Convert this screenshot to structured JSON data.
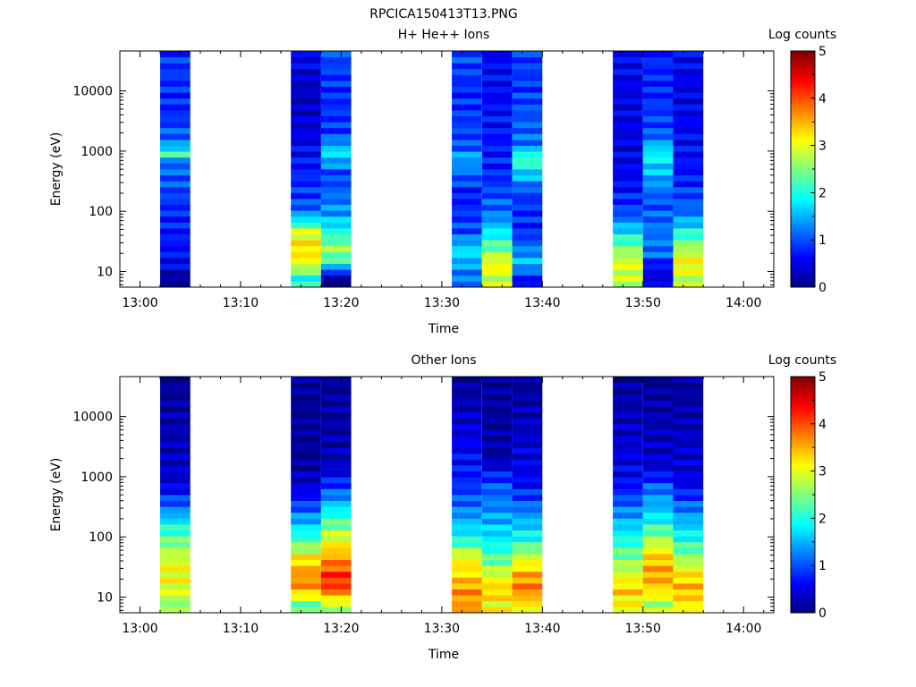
{
  "figure_title": "RPCICA150413T13.PNG",
  "colormap": [
    "#00007f",
    "#0000ff",
    "#007fff",
    "#00ffff",
    "#7fff7f",
    "#ffff00",
    "#ff7f00",
    "#ff0000",
    "#7f0000"
  ],
  "chart_data": [
    {
      "type": "heatmap",
      "title": "H+ He++ Ions",
      "xlabel": "Time",
      "ylabel": "Energy (eV)",
      "yscale": "log",
      "x_ticks": [
        "13:00",
        "13:10",
        "13:20",
        "13:30",
        "13:40",
        "13:50",
        "14:00"
      ],
      "y_ticks": [
        "10",
        "100",
        "1000",
        "10000"
      ],
      "colorbar": {
        "label": "Log counts",
        "min": 0,
        "max": 5,
        "ticks": [
          "0",
          "1",
          "2",
          "3",
          "4",
          "5"
        ]
      },
      "bins": [
        {
          "start": "13:02",
          "end": "13:05",
          "profile": [
            {
              "e": 8,
              "v": 0.1
            },
            {
              "e": 13,
              "v": 0.6
            },
            {
              "e": 30,
              "v": 0.7
            },
            {
              "e": 100,
              "v": 0.8
            },
            {
              "e": 700,
              "v": 1.2
            },
            {
              "e": 950,
              "v": 2.6
            },
            {
              "e": 1200,
              "v": 1.3
            },
            {
              "e": 4000,
              "v": 0.8
            },
            {
              "e": 40000,
              "v": 0.9
            }
          ]
        },
        {
          "start": "13:15",
          "end": "13:18",
          "profile": [
            {
              "e": 8,
              "v": 2.0
            },
            {
              "e": 13,
              "v": 3.0
            },
            {
              "e": 22,
              "v": 3.3
            },
            {
              "e": 45,
              "v": 3.0
            },
            {
              "e": 70,
              "v": 1.8
            },
            {
              "e": 120,
              "v": 1.0
            },
            {
              "e": 600,
              "v": 0.7
            },
            {
              "e": 3000,
              "v": 0.4
            },
            {
              "e": 10000,
              "v": 0.3
            },
            {
              "e": 40000,
              "v": 0.6
            }
          ]
        },
        {
          "start": "13:18",
          "end": "13:21",
          "profile": [
            {
              "e": 8,
              "v": 0.1
            },
            {
              "e": 13,
              "v": 1.9
            },
            {
              "e": 22,
              "v": 2.7
            },
            {
              "e": 45,
              "v": 2.0
            },
            {
              "e": 90,
              "v": 1.4
            },
            {
              "e": 400,
              "v": 0.9
            },
            {
              "e": 950,
              "v": 1.8
            },
            {
              "e": 2000,
              "v": 0.9
            },
            {
              "e": 10000,
              "v": 0.8
            },
            {
              "e": 40000,
              "v": 1.0
            }
          ]
        },
        {
          "start": "13:31",
          "end": "13:34",
          "profile": [
            {
              "e": 8,
              "v": 1.2
            },
            {
              "e": 13,
              "v": 1.4
            },
            {
              "e": 22,
              "v": 1.8
            },
            {
              "e": 45,
              "v": 1.0
            },
            {
              "e": 200,
              "v": 0.7
            },
            {
              "e": 800,
              "v": 1.5
            },
            {
              "e": 1200,
              "v": 1.0
            },
            {
              "e": 10000,
              "v": 0.8
            },
            {
              "e": 40000,
              "v": 1.0
            }
          ]
        },
        {
          "start": "13:34",
          "end": "13:37",
          "profile": [
            {
              "e": 8,
              "v": 2.8
            },
            {
              "e": 13,
              "v": 3.2
            },
            {
              "e": 22,
              "v": 2.5
            },
            {
              "e": 45,
              "v": 1.8
            },
            {
              "e": 90,
              "v": 1.2
            },
            {
              "e": 400,
              "v": 0.8
            },
            {
              "e": 2000,
              "v": 0.7
            },
            {
              "e": 10000,
              "v": 0.6
            },
            {
              "e": 40000,
              "v": 0.6
            }
          ]
        },
        {
          "start": "13:37",
          "end": "13:40",
          "profile": [
            {
              "e": 8,
              "v": 0.7
            },
            {
              "e": 13,
              "v": 1.6
            },
            {
              "e": 22,
              "v": 1.3
            },
            {
              "e": 45,
              "v": 0.8
            },
            {
              "e": 200,
              "v": 0.9
            },
            {
              "e": 800,
              "v": 2.3
            },
            {
              "e": 1200,
              "v": 1.2
            },
            {
              "e": 10000,
              "v": 0.9
            },
            {
              "e": 40000,
              "v": 0.9
            }
          ]
        },
        {
          "start": "13:47",
          "end": "13:50",
          "profile": [
            {
              "e": 8,
              "v": 2.8
            },
            {
              "e": 13,
              "v": 3.0
            },
            {
              "e": 22,
              "v": 2.6
            },
            {
              "e": 45,
              "v": 1.8
            },
            {
              "e": 90,
              "v": 1.0
            },
            {
              "e": 300,
              "v": 0.6
            },
            {
              "e": 1000,
              "v": 0.5
            },
            {
              "e": 10000,
              "v": 0.5
            },
            {
              "e": 40000,
              "v": 0.6
            }
          ]
        },
        {
          "start": "13:50",
          "end": "13:53",
          "profile": [
            {
              "e": 11,
              "v": 0.5
            },
            {
              "e": 20,
              "v": 1.2
            },
            {
              "e": 45,
              "v": 1.2
            },
            {
              "e": 150,
              "v": 1.0
            },
            {
              "e": 900,
              "v": 1.9
            },
            {
              "e": 2000,
              "v": 1.0
            },
            {
              "e": 10000,
              "v": 0.8
            },
            {
              "e": 40000,
              "v": 0.8
            }
          ]
        },
        {
          "start": "13:53",
          "end": "13:56",
          "profile": [
            {
              "e": 8,
              "v": 2.8
            },
            {
              "e": 13,
              "v": 3.2
            },
            {
              "e": 22,
              "v": 2.8
            },
            {
              "e": 45,
              "v": 2.0
            },
            {
              "e": 90,
              "v": 1.2
            },
            {
              "e": 400,
              "v": 0.7
            },
            {
              "e": 2000,
              "v": 0.6
            },
            {
              "e": 10000,
              "v": 0.5
            },
            {
              "e": 40000,
              "v": 0.6
            }
          ]
        }
      ]
    },
    {
      "type": "heatmap",
      "title": "Other Ions",
      "xlabel": "Time",
      "ylabel": "Energy (eV)",
      "yscale": "log",
      "x_ticks": [
        "13:00",
        "13:10",
        "13:20",
        "13:30",
        "13:40",
        "13:50",
        "14:00"
      ],
      "y_ticks": [
        "10",
        "100",
        "1000",
        "10000"
      ],
      "colorbar": {
        "label": "Log counts",
        "min": 0,
        "max": 5,
        "ticks": [
          "0",
          "1",
          "2",
          "3",
          "4",
          "5"
        ]
      },
      "bins": [
        {
          "start": "13:02",
          "end": "13:05",
          "profile": [
            {
              "e": 8,
              "v": 2.6
            },
            {
              "e": 13,
              "v": 3.0
            },
            {
              "e": 30,
              "v": 3.1
            },
            {
              "e": 70,
              "v": 2.6
            },
            {
              "e": 150,
              "v": 2.0
            },
            {
              "e": 300,
              "v": 1.2
            },
            {
              "e": 800,
              "v": 0.4
            },
            {
              "e": 40000,
              "v": 0.1
            }
          ]
        },
        {
          "start": "13:15",
          "end": "13:18",
          "profile": [
            {
              "e": 8,
              "v": 2.4
            },
            {
              "e": 13,
              "v": 3.6
            },
            {
              "e": 22,
              "v": 3.7
            },
            {
              "e": 45,
              "v": 3.2
            },
            {
              "e": 90,
              "v": 2.2
            },
            {
              "e": 200,
              "v": 1.4
            },
            {
              "e": 500,
              "v": 0.6
            },
            {
              "e": 1500,
              "v": 0.1
            },
            {
              "e": 40000,
              "v": 0.1
            }
          ]
        },
        {
          "start": "13:18",
          "end": "13:21",
          "profile": [
            {
              "e": 8,
              "v": 2.8
            },
            {
              "e": 13,
              "v": 4.0
            },
            {
              "e": 22,
              "v": 4.2
            },
            {
              "e": 45,
              "v": 3.6
            },
            {
              "e": 90,
              "v": 3.0
            },
            {
              "e": 200,
              "v": 2.2
            },
            {
              "e": 500,
              "v": 1.2
            },
            {
              "e": 1500,
              "v": 0.3
            },
            {
              "e": 40000,
              "v": 0.1
            }
          ]
        },
        {
          "start": "13:31",
          "end": "13:34",
          "profile": [
            {
              "e": 8,
              "v": 3.6
            },
            {
              "e": 13,
              "v": 3.7
            },
            {
              "e": 22,
              "v": 3.3
            },
            {
              "e": 45,
              "v": 3.1
            },
            {
              "e": 90,
              "v": 2.0
            },
            {
              "e": 300,
              "v": 1.2
            },
            {
              "e": 800,
              "v": 0.8
            },
            {
              "e": 40000,
              "v": 0.1
            }
          ]
        },
        {
          "start": "13:34",
          "end": "13:37",
          "profile": [
            {
              "e": 8,
              "v": 3.1
            },
            {
              "e": 13,
              "v": 3.4
            },
            {
              "e": 22,
              "v": 3.0
            },
            {
              "e": 45,
              "v": 2.3
            },
            {
              "e": 90,
              "v": 1.8
            },
            {
              "e": 300,
              "v": 1.3
            },
            {
              "e": 800,
              "v": 1.0
            },
            {
              "e": 2000,
              "v": 0.2
            },
            {
              "e": 40000,
              "v": 0.1
            }
          ]
        },
        {
          "start": "13:37",
          "end": "13:40",
          "profile": [
            {
              "e": 8,
              "v": 3.2
            },
            {
              "e": 13,
              "v": 3.8
            },
            {
              "e": 22,
              "v": 3.6
            },
            {
              "e": 45,
              "v": 2.9
            },
            {
              "e": 90,
              "v": 2.0
            },
            {
              "e": 300,
              "v": 1.2
            },
            {
              "e": 800,
              "v": 0.6
            },
            {
              "e": 40000,
              "v": 0.1
            }
          ]
        },
        {
          "start": "13:47",
          "end": "13:50",
          "profile": [
            {
              "e": 8,
              "v": 3.1
            },
            {
              "e": 13,
              "v": 3.4
            },
            {
              "e": 22,
              "v": 3.0
            },
            {
              "e": 45,
              "v": 2.5
            },
            {
              "e": 90,
              "v": 2.0
            },
            {
              "e": 300,
              "v": 1.2
            },
            {
              "e": 800,
              "v": 0.6
            },
            {
              "e": 40000,
              "v": 0.1
            }
          ]
        },
        {
          "start": "13:50",
          "end": "13:53",
          "profile": [
            {
              "e": 8,
              "v": 2.7
            },
            {
              "e": 13,
              "v": 3.3
            },
            {
              "e": 22,
              "v": 3.6
            },
            {
              "e": 45,
              "v": 3.4
            },
            {
              "e": 90,
              "v": 2.7
            },
            {
              "e": 200,
              "v": 1.8
            },
            {
              "e": 600,
              "v": 1.2
            },
            {
              "e": 1500,
              "v": 0.4
            },
            {
              "e": 40000,
              "v": 0.1
            }
          ]
        },
        {
          "start": "13:53",
          "end": "13:56",
          "profile": [
            {
              "e": 8,
              "v": 3.2
            },
            {
              "e": 13,
              "v": 3.5
            },
            {
              "e": 22,
              "v": 3.3
            },
            {
              "e": 45,
              "v": 2.6
            },
            {
              "e": 90,
              "v": 2.0
            },
            {
              "e": 300,
              "v": 1.2
            },
            {
              "e": 800,
              "v": 0.5
            },
            {
              "e": 40000,
              "v": 0.1
            }
          ]
        }
      ]
    }
  ]
}
